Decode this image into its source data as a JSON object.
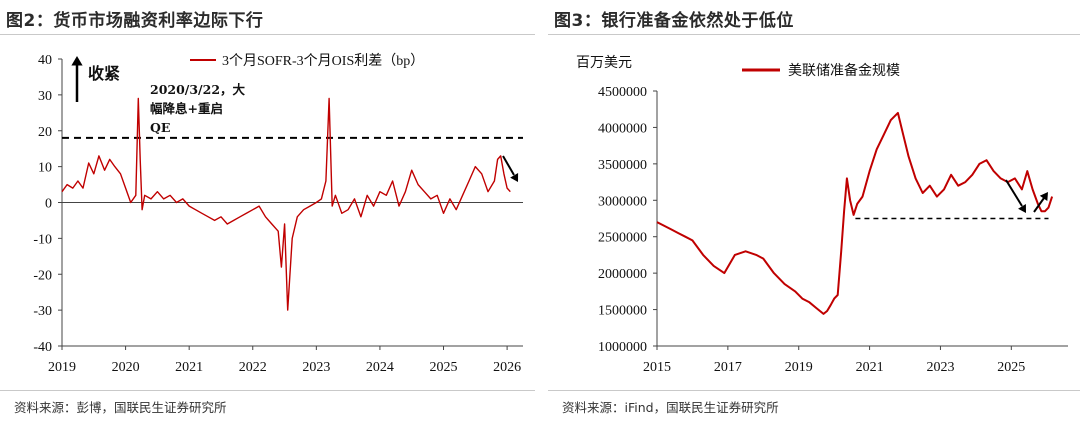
{
  "figure_left": {
    "title": "图2：货币市场融资利率边际下行",
    "source": "资料来源：彭博，国联民生证券研究所"
  },
  "figure_right": {
    "title": "图3：银行准备金依然处于低位",
    "source": "资料来源：iFind，国联民生证券研究所"
  },
  "chart_data": [
    {
      "type": "line",
      "x_unit": "year",
      "xlim": [
        2019.0,
        2026.25
      ],
      "x_ticks": [
        "2019",
        "2020",
        "2021",
        "2022",
        "2023",
        "2024",
        "2025",
        "2026"
      ],
      "ylim": [
        -40,
        40
      ],
      "y_ticks": [
        "40",
        "30",
        "20",
        "10",
        "0",
        "-10",
        "-20",
        "-30",
        "-40"
      ],
      "series": [
        {
          "name": "3个月SOFR-3个月OIS利差（bp）",
          "color": "#c00000",
          "x": [
            2019.0,
            2019.08,
            2019.17,
            2019.25,
            2019.33,
            2019.42,
            2019.5,
            2019.58,
            2019.67,
            2019.75,
            2019.83,
            2019.92,
            2020.0,
            2020.08,
            2020.16,
            2020.2,
            2020.23,
            2020.26,
            2020.3,
            2020.4,
            2020.5,
            2020.6,
            2020.7,
            2020.8,
            2020.9,
            2021.0,
            2021.1,
            2021.2,
            2021.3,
            2021.4,
            2021.5,
            2021.6,
            2021.7,
            2021.8,
            2021.9,
            2022.0,
            2022.1,
            2022.2,
            2022.3,
            2022.4,
            2022.45,
            2022.5,
            2022.55,
            2022.62,
            2022.7,
            2022.8,
            2022.9,
            2023.0,
            2023.08,
            2023.15,
            2023.2,
            2023.25,
            2023.3,
            2023.4,
            2023.5,
            2023.6,
            2023.7,
            2023.8,
            2023.9,
            2024.0,
            2024.1,
            2024.2,
            2024.3,
            2024.4,
            2024.5,
            2024.6,
            2024.7,
            2024.8,
            2024.9,
            2025.0,
            2025.1,
            2025.2,
            2025.3,
            2025.4,
            2025.5,
            2025.6,
            2025.7,
            2025.8,
            2025.85,
            2025.9,
            2025.95,
            2026.0,
            2026.05
          ],
          "y": [
            3,
            5,
            4,
            6,
            4,
            11,
            8,
            13,
            9,
            12,
            10,
            8,
            4,
            0,
            2,
            29,
            12,
            -2,
            2,
            1,
            3,
            1,
            2,
            0,
            1,
            -1,
            -2,
            -3,
            -4,
            -5,
            -4,
            -6,
            -5,
            -4,
            -3,
            -2,
            -1,
            -4,
            -6,
            -8,
            -18,
            -6,
            -30,
            -10,
            -4,
            -2,
            -1,
            0,
            1,
            6,
            29,
            -1,
            2,
            -3,
            -2,
            1,
            -4,
            2,
            -1,
            3,
            2,
            6,
            -1,
            3,
            9,
            5,
            3,
            1,
            2,
            -3,
            1,
            -2,
            2,
            6,
            10,
            8,
            3,
            6,
            12,
            13,
            8,
            4,
            3
          ]
        }
      ],
      "annotations": {
        "up_label": "收紧",
        "note_lines": [
          "2020/3/22，大",
          "幅降息+重启",
          "QE"
        ],
        "dashed_level": 18
      }
    },
    {
      "type": "line",
      "x_unit": "year",
      "xlim": [
        2015.0,
        2026.6
      ],
      "x_ticks": [
        "2015",
        "2017",
        "2019",
        "2021",
        "2023",
        "2025"
      ],
      "ylim": [
        1000000,
        4500000
      ],
      "y_ticks": [
        "4500000",
        "4000000",
        "3500000",
        "3000000",
        "2500000",
        "2000000",
        "1500000",
        "1000000"
      ],
      "ylabel": "百万美元",
      "series": [
        {
          "name": "美联储准备金规模",
          "color": "#c00000",
          "x": [
            2015.0,
            2015.2,
            2015.4,
            2015.6,
            2015.8,
            2016.0,
            2016.3,
            2016.6,
            2016.9,
            2017.2,
            2017.5,
            2017.8,
            2018.0,
            2018.3,
            2018.6,
            2018.9,
            2019.1,
            2019.3,
            2019.5,
            2019.7,
            2019.8,
            2019.9,
            2020.0,
            2020.1,
            2020.2,
            2020.28,
            2020.36,
            2020.45,
            2020.55,
            2020.65,
            2020.8,
            2021.0,
            2021.2,
            2021.4,
            2021.6,
            2021.8,
            2021.95,
            2022.1,
            2022.3,
            2022.5,
            2022.7,
            2022.9,
            2023.1,
            2023.3,
            2023.5,
            2023.7,
            2023.9,
            2024.1,
            2024.3,
            2024.5,
            2024.7,
            2024.9,
            2025.1,
            2025.3,
            2025.45,
            2025.6,
            2025.75,
            2025.85,
            2025.95,
            2026.05,
            2026.15
          ],
          "y": [
            2700000,
            2650000,
            2600000,
            2550000,
            2500000,
            2450000,
            2250000,
            2100000,
            2000000,
            2250000,
            2300000,
            2250000,
            2200000,
            2000000,
            1850000,
            1750000,
            1650000,
            1600000,
            1520000,
            1440000,
            1480000,
            1560000,
            1650000,
            1700000,
            2300000,
            2850000,
            3300000,
            3000000,
            2800000,
            2950000,
            3050000,
            3400000,
            3700000,
            3900000,
            4100000,
            4200000,
            3900000,
            3600000,
            3300000,
            3100000,
            3200000,
            3050000,
            3150000,
            3350000,
            3200000,
            3250000,
            3350000,
            3500000,
            3550000,
            3400000,
            3300000,
            3250000,
            3300000,
            3150000,
            3400000,
            3150000,
            2950000,
            2850000,
            2850000,
            2900000,
            3050000
          ]
        }
      ],
      "annotations": {
        "dashed_level": 2750000
      }
    }
  ]
}
